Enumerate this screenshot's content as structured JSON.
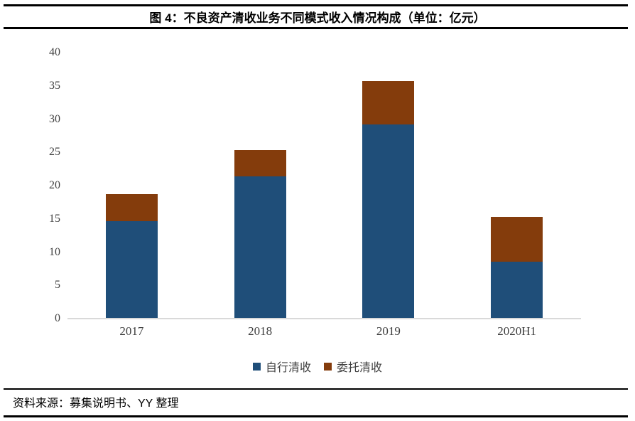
{
  "figure": {
    "title": "图 4：不良资产清收业务不同模式收入情况构成（单位：亿元）",
    "source": "资料来源：募集说明书、YY 整理"
  },
  "colors": {
    "series_self": "#1F4E79",
    "series_entrusted": "#843C0C",
    "baseline": "#D9D9D9",
    "axis_text": "#3F3F3F",
    "rule": "#000000"
  },
  "chart_data": {
    "type": "bar",
    "stacked": true,
    "title": "图 4：不良资产清收业务不同模式收入情况构成",
    "unit": "亿元",
    "categories": [
      "2017",
      "2018",
      "2019",
      "2020H1"
    ],
    "series": [
      {
        "name": "自行清收",
        "color": "#1F4E79",
        "values": [
          14.7,
          21.4,
          29.2,
          8.6
        ]
      },
      {
        "name": "委托清收",
        "color": "#843C0C",
        "values": [
          4.0,
          4.0,
          6.5,
          6.7
        ]
      }
    ],
    "totals": [
      18.7,
      25.4,
      35.7,
      15.3
    ],
    "ylim": [
      0,
      40
    ],
    "ytick_step": 5,
    "yticks": [
      0,
      5,
      10,
      15,
      20,
      25,
      30,
      35,
      40
    ],
    "grid": false,
    "legend_position": "bottom",
    "xlabel": "",
    "ylabel": ""
  }
}
